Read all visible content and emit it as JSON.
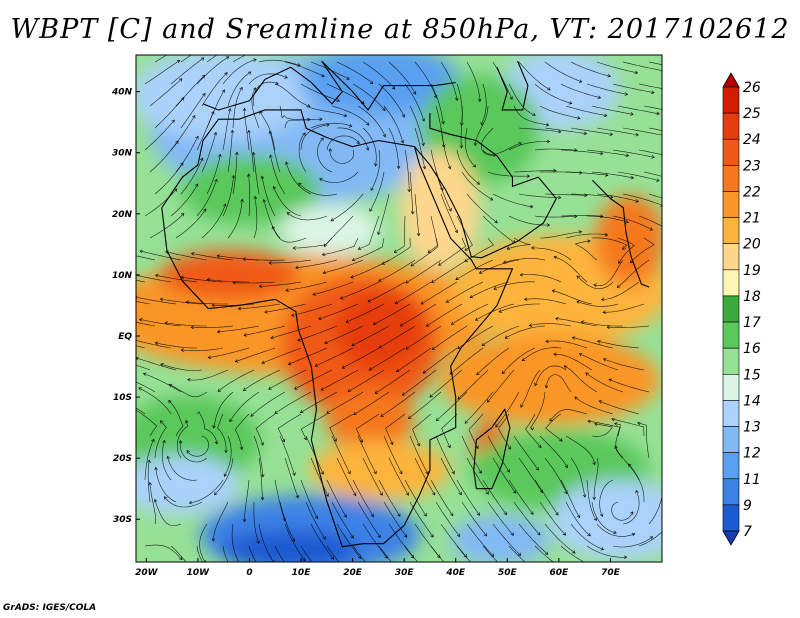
{
  "title": "WBPT [C] and Sreamline at 850hPa, VT: 2017102612",
  "credit": "GrADS: IGES/COLA",
  "map": {
    "lon_range": [
      -22,
      80
    ],
    "lat_range": [
      -37,
      46
    ],
    "x_ticks": [
      {
        "lon": -20,
        "label": "20W"
      },
      {
        "lon": -10,
        "label": "10W"
      },
      {
        "lon": 0,
        "label": "0"
      },
      {
        "lon": 10,
        "label": "10E"
      },
      {
        "lon": 20,
        "label": "20E"
      },
      {
        "lon": 30,
        "label": "30E"
      },
      {
        "lon": 40,
        "label": "40E"
      },
      {
        "lon": 50,
        "label": "50E"
      },
      {
        "lon": 60,
        "label": "60E"
      },
      {
        "lon": 70,
        "label": "70E"
      }
    ],
    "y_ticks": [
      {
        "lat": 40,
        "label": "40N"
      },
      {
        "lat": 30,
        "label": "30N"
      },
      {
        "lat": 20,
        "label": "20N"
      },
      {
        "lat": 10,
        "label": "10N"
      },
      {
        "lat": 0,
        "label": "EQ"
      },
      {
        "lat": -10,
        "label": "10S"
      },
      {
        "lat": -20,
        "label": "20S"
      },
      {
        "lat": -30,
        "label": "30S"
      }
    ],
    "field": "Wet-bulb potential temperature at 850hPa with streamlines"
  },
  "colorbar": {
    "labels": [
      "26",
      "25",
      "24",
      "23",
      "22",
      "21",
      "20",
      "19",
      "18",
      "17",
      "16",
      "15",
      "14",
      "13",
      "12",
      "11",
      "9",
      "7"
    ],
    "colors": [
      "#b40000",
      "#d21e00",
      "#e63c0f",
      "#f05a14",
      "#f5781e",
      "#fa9628",
      "#fcb43c",
      "#fdd78c",
      "#fff5b4",
      "#3caa3c",
      "#5ac85a",
      "#96e196",
      "#dcf5e6",
      "#aad2fa",
      "#82b9f5",
      "#5aa0f0",
      "#3c82e6",
      "#1e5ad2",
      "#143cb4"
    ]
  },
  "colors": {
    "cold": "#3c82e6",
    "cool": "#96e196",
    "warm": "#fa9628",
    "hot": "#e63c0f",
    "streamline": "#000000"
  }
}
